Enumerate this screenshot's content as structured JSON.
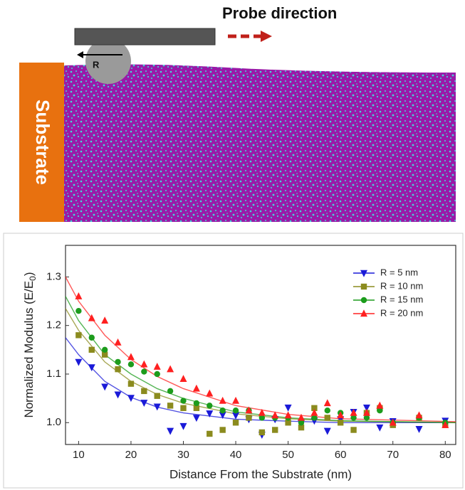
{
  "schematic": {
    "probe_direction": "Probe direction",
    "radius_label": "R",
    "substrate_label": "Substrate"
  },
  "chart_data": {
    "type": "scatter",
    "xlabel": "Distance From the Substrate (nm)",
    "ylabel": [
      "Normalized Modulus (E/E",
      "0",
      ")"
    ],
    "xlim": [
      7.5,
      82
    ],
    "ylim": [
      0.955,
      1.365
    ],
    "xticks": [
      10,
      20,
      30,
      40,
      50,
      60,
      70,
      80
    ],
    "yticks": [
      {
        "value": 1,
        "label": "1.0"
      },
      1.1,
      1.2,
      1.3
    ],
    "legend": "upper right",
    "x": [
      10,
      12.5,
      15,
      17.5,
      20,
      22.5,
      25,
      27.5,
      30,
      32.5,
      35,
      37.5,
      40,
      42.5,
      45,
      47.5,
      50,
      52.5,
      55,
      57.5,
      60,
      62.5,
      65,
      67.5,
      70,
      75,
      80
    ],
    "fit_x": [
      7.5,
      10,
      15,
      20,
      25,
      30,
      40,
      50,
      60,
      82
    ],
    "series": [
      {
        "name": "R = 5 nm",
        "color": "#1a1ad8",
        "marker": "triangle-down",
        "values": [
          1.125,
          1.114,
          1.074,
          1.058,
          1.051,
          1.041,
          1.033,
          0.983,
          0.993,
          1.01,
          1.019,
          1.016,
          1.015,
          1.007,
          0.975,
          1.007,
          1.031,
          1.0,
          1.004,
          0.983,
          1.007,
          1.022,
          1.031,
          0.99,
          1.003,
          0.987,
          1.004
        ],
        "fit": [
          1.175,
          1.14,
          1.085,
          1.052,
          1.032,
          1.02,
          1.007,
          1.003,
          1.0,
          1.0
        ]
      },
      {
        "name": "R = 10 nm",
        "color": "#8b8b1e",
        "marker": "square",
        "values": [
          1.18,
          1.15,
          1.14,
          1.11,
          1.08,
          1.065,
          1.055,
          1.035,
          1.03,
          1.03,
          0.977,
          0.985,
          1.0,
          1.01,
          0.98,
          0.985,
          1.0,
          0.99,
          1.03,
          1.01,
          1.0,
          0.985,
          1.02,
          1.03,
          0.995,
          1.01,
          0.995
        ],
        "fit": [
          1.235,
          1.19,
          1.125,
          1.085,
          1.058,
          1.04,
          1.018,
          1.008,
          1.003,
          1.0
        ]
      },
      {
        "name": "R = 15 nm",
        "color": "#1c9c1c",
        "marker": "circle",
        "values": [
          1.23,
          1.175,
          1.15,
          1.125,
          1.12,
          1.105,
          1.1,
          1.065,
          1.045,
          1.04,
          1.035,
          1.025,
          1.025,
          1.025,
          1.01,
          1.01,
          1.01,
          1.0,
          1.01,
          1.025,
          1.02,
          1.01,
          1.01,
          1.025,
          1.0,
          1.01,
          1.0
        ],
        "fit": [
          1.26,
          1.21,
          1.14,
          1.1,
          1.07,
          1.05,
          1.022,
          1.01,
          1.004,
          1.0
        ]
      },
      {
        "name": "R = 20 nm",
        "color": "#ff2020",
        "marker": "triangle-up",
        "values": [
          1.26,
          1.215,
          1.21,
          1.165,
          1.135,
          1.12,
          1.115,
          1.11,
          1.09,
          1.07,
          1.06,
          1.045,
          1.045,
          1.025,
          1.02,
          1.015,
          1.015,
          1.01,
          1.02,
          1.04,
          1.015,
          1.02,
          1.02,
          1.035,
          1.0,
          1.015,
          0.995
        ],
        "fit": [
          1.3,
          1.25,
          1.18,
          1.13,
          1.095,
          1.07,
          1.035,
          1.017,
          1.008,
          1.002
        ]
      }
    ]
  }
}
